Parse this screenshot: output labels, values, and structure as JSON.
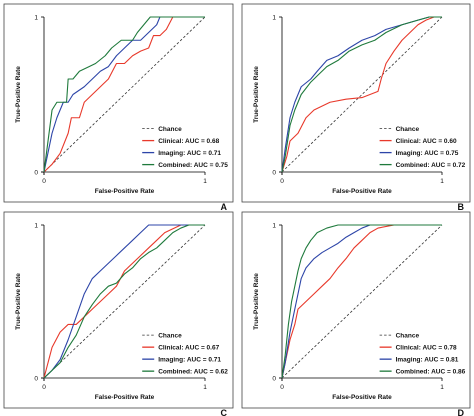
{
  "colors": {
    "clinical": "#e8392b",
    "imaging": "#2d45a8",
    "combined": "#1f7a3c",
    "chance": "#333333",
    "frame": "#444444",
    "axis": "#000000"
  },
  "chart_data": [
    {
      "type": "line",
      "panel": "A",
      "xlabel": "False-Positive Rate",
      "ylabel": "True-Positive Rate",
      "xlim": [
        0,
        1
      ],
      "ylim": [
        0,
        1
      ],
      "xticks": [
        "0",
        "1"
      ],
      "yticks": [
        "0",
        "1"
      ],
      "grid": false,
      "legend_position": "bottom-right",
      "series": [
        {
          "name": "Chance",
          "style": "dashed",
          "color_key": "chance",
          "points": [
            [
              0,
              0
            ],
            [
              1,
              1
            ]
          ]
        },
        {
          "name": "Clinical: AUC = 0.68",
          "color_key": "clinical",
          "points": [
            [
              0,
              0
            ],
            [
              0.05,
              0.05
            ],
            [
              0.1,
              0.12
            ],
            [
              0.15,
              0.25
            ],
            [
              0.17,
              0.35
            ],
            [
              0.22,
              0.35
            ],
            [
              0.25,
              0.45
            ],
            [
              0.3,
              0.5
            ],
            [
              0.35,
              0.55
            ],
            [
              0.4,
              0.6
            ],
            [
              0.45,
              0.7
            ],
            [
              0.5,
              0.7
            ],
            [
              0.55,
              0.75
            ],
            [
              0.6,
              0.78
            ],
            [
              0.65,
              0.8
            ],
            [
              0.68,
              0.88
            ],
            [
              0.72,
              0.88
            ],
            [
              0.76,
              0.92
            ],
            [
              0.8,
              1.0
            ],
            [
              1.0,
              1.0
            ]
          ]
        },
        {
          "name": "Imaging: AUC = 0.71",
          "color_key": "imaging",
          "points": [
            [
              0,
              0
            ],
            [
              0.05,
              0.25
            ],
            [
              0.08,
              0.35
            ],
            [
              0.12,
              0.45
            ],
            [
              0.15,
              0.45
            ],
            [
              0.18,
              0.5
            ],
            [
              0.25,
              0.55
            ],
            [
              0.3,
              0.6
            ],
            [
              0.35,
              0.65
            ],
            [
              0.4,
              0.68
            ],
            [
              0.45,
              0.75
            ],
            [
              0.5,
              0.8
            ],
            [
              0.55,
              0.85
            ],
            [
              0.6,
              0.85
            ],
            [
              0.65,
              0.9
            ],
            [
              0.7,
              0.95
            ],
            [
              0.72,
              1.0
            ],
            [
              1.0,
              1.0
            ]
          ]
        },
        {
          "name": "Combined: AUC = 0.75",
          "color_key": "combined",
          "points": [
            [
              0,
              0
            ],
            [
              0.05,
              0.4
            ],
            [
              0.08,
              0.45
            ],
            [
              0.14,
              0.45
            ],
            [
              0.15,
              0.6
            ],
            [
              0.18,
              0.6
            ],
            [
              0.22,
              0.65
            ],
            [
              0.28,
              0.68
            ],
            [
              0.32,
              0.7
            ],
            [
              0.38,
              0.75
            ],
            [
              0.42,
              0.8
            ],
            [
              0.48,
              0.85
            ],
            [
              0.55,
              0.85
            ],
            [
              0.58,
              0.9
            ],
            [
              0.62,
              0.95
            ],
            [
              0.66,
              1.0
            ],
            [
              1.0,
              1.0
            ]
          ]
        }
      ]
    },
    {
      "type": "line",
      "panel": "B",
      "xlabel": "False-Positive Rate",
      "ylabel": "True-Positive Rate",
      "xlim": [
        0,
        1
      ],
      "ylim": [
        0,
        1
      ],
      "xticks": [
        "0",
        "1"
      ],
      "yticks": [
        "0",
        "1"
      ],
      "grid": false,
      "legend_position": "bottom-right",
      "series": [
        {
          "name": "Chance",
          "style": "dashed",
          "color_key": "chance",
          "points": [
            [
              0,
              0
            ],
            [
              1,
              1
            ]
          ]
        },
        {
          "name": "Clinical: AUC = 0.60",
          "color_key": "clinical",
          "points": [
            [
              0,
              0
            ],
            [
              0.03,
              0.1
            ],
            [
              0.05,
              0.2
            ],
            [
              0.1,
              0.25
            ],
            [
              0.15,
              0.35
            ],
            [
              0.2,
              0.4
            ],
            [
              0.3,
              0.45
            ],
            [
              0.4,
              0.47
            ],
            [
              0.5,
              0.48
            ],
            [
              0.55,
              0.5
            ],
            [
              0.6,
              0.52
            ],
            [
              0.62,
              0.6
            ],
            [
              0.65,
              0.7
            ],
            [
              0.7,
              0.78
            ],
            [
              0.75,
              0.85
            ],
            [
              0.8,
              0.9
            ],
            [
              0.85,
              0.95
            ],
            [
              0.9,
              0.98
            ],
            [
              0.95,
              1.0
            ],
            [
              1.0,
              1.0
            ]
          ]
        },
        {
          "name": "Imaging: AUC = 0.75",
          "color_key": "imaging",
          "points": [
            [
              0,
              0
            ],
            [
              0.02,
              0.15
            ],
            [
              0.05,
              0.35
            ],
            [
              0.08,
              0.45
            ],
            [
              0.12,
              0.55
            ],
            [
              0.18,
              0.6
            ],
            [
              0.22,
              0.65
            ],
            [
              0.28,
              0.72
            ],
            [
              0.35,
              0.75
            ],
            [
              0.42,
              0.8
            ],
            [
              0.5,
              0.85
            ],
            [
              0.58,
              0.88
            ],
            [
              0.65,
              0.92
            ],
            [
              0.75,
              0.95
            ],
            [
              0.85,
              0.98
            ],
            [
              0.92,
              1.0
            ],
            [
              1.0,
              1.0
            ]
          ]
        },
        {
          "name": "Combined: AUC = 0.72",
          "color_key": "combined",
          "points": [
            [
              0,
              0
            ],
            [
              0.02,
              0.1
            ],
            [
              0.05,
              0.3
            ],
            [
              0.08,
              0.4
            ],
            [
              0.12,
              0.5
            ],
            [
              0.18,
              0.58
            ],
            [
              0.22,
              0.62
            ],
            [
              0.28,
              0.68
            ],
            [
              0.35,
              0.72
            ],
            [
              0.42,
              0.78
            ],
            [
              0.5,
              0.82
            ],
            [
              0.58,
              0.85
            ],
            [
              0.65,
              0.9
            ],
            [
              0.75,
              0.95
            ],
            [
              0.85,
              0.98
            ],
            [
              0.92,
              1.0
            ],
            [
              1.0,
              1.0
            ]
          ]
        }
      ]
    },
    {
      "type": "line",
      "panel": "C",
      "xlabel": "False-Positive Rate",
      "ylabel": "True-Positive Rate",
      "xlim": [
        0,
        1
      ],
      "ylim": [
        0,
        1
      ],
      "xticks": [
        "0",
        "1"
      ],
      "yticks": [
        "0",
        "1"
      ],
      "grid": false,
      "legend_position": "bottom-right",
      "series": [
        {
          "name": "Chance",
          "style": "dashed",
          "color_key": "chance",
          "points": [
            [
              0,
              0
            ],
            [
              1,
              1
            ]
          ]
        },
        {
          "name": "Clinical: AUC = 0.67",
          "color_key": "clinical",
          "points": [
            [
              0,
              0
            ],
            [
              0.05,
              0.2
            ],
            [
              0.1,
              0.3
            ],
            [
              0.15,
              0.35
            ],
            [
              0.2,
              0.35
            ],
            [
              0.25,
              0.4
            ],
            [
              0.3,
              0.45
            ],
            [
              0.35,
              0.5
            ],
            [
              0.4,
              0.55
            ],
            [
              0.45,
              0.6
            ],
            [
              0.5,
              0.7
            ],
            [
              0.55,
              0.75
            ],
            [
              0.6,
              0.8
            ],
            [
              0.65,
              0.85
            ],
            [
              0.7,
              0.9
            ],
            [
              0.75,
              0.95
            ],
            [
              0.85,
              1.0
            ],
            [
              1.0,
              1.0
            ]
          ]
        },
        {
          "name": "Imaging: AUC = 0.71",
          "color_key": "imaging",
          "points": [
            [
              0,
              0
            ],
            [
              0.05,
              0.05
            ],
            [
              0.1,
              0.12
            ],
            [
              0.15,
              0.25
            ],
            [
              0.2,
              0.4
            ],
            [
              0.25,
              0.55
            ],
            [
              0.3,
              0.65
            ],
            [
              0.35,
              0.7
            ],
            [
              0.4,
              0.75
            ],
            [
              0.45,
              0.8
            ],
            [
              0.5,
              0.85
            ],
            [
              0.55,
              0.9
            ],
            [
              0.6,
              0.95
            ],
            [
              0.65,
              1.0
            ],
            [
              1.0,
              1.0
            ]
          ]
        },
        {
          "name": "Combined: AUC = 0.62",
          "color_key": "combined",
          "points": [
            [
              0,
              0
            ],
            [
              0.05,
              0.05
            ],
            [
              0.1,
              0.1
            ],
            [
              0.15,
              0.2
            ],
            [
              0.2,
              0.28
            ],
            [
              0.25,
              0.4
            ],
            [
              0.3,
              0.48
            ],
            [
              0.35,
              0.55
            ],
            [
              0.4,
              0.6
            ],
            [
              0.45,
              0.62
            ],
            [
              0.5,
              0.68
            ],
            [
              0.55,
              0.72
            ],
            [
              0.6,
              0.78
            ],
            [
              0.65,
              0.82
            ],
            [
              0.7,
              0.85
            ],
            [
              0.75,
              0.9
            ],
            [
              0.8,
              0.95
            ],
            [
              0.85,
              0.98
            ],
            [
              0.9,
              1.0
            ],
            [
              1.0,
              1.0
            ]
          ]
        }
      ]
    },
    {
      "type": "line",
      "panel": "D",
      "xlabel": "False-Positive Rate",
      "ylabel": "True-Positive Rate",
      "xlim": [
        0,
        1
      ],
      "ylim": [
        0,
        1
      ],
      "xticks": [
        "0",
        "1"
      ],
      "yticks": [
        "0",
        "1"
      ],
      "grid": false,
      "legend_position": "bottom-right",
      "series": [
        {
          "name": "Chance",
          "style": "dashed",
          "color_key": "chance",
          "points": [
            [
              0,
              0
            ],
            [
              1,
              1
            ]
          ]
        },
        {
          "name": "Clinical: AUC = 0.78",
          "color_key": "clinical",
          "points": [
            [
              0,
              0
            ],
            [
              0.02,
              0.1
            ],
            [
              0.05,
              0.25
            ],
            [
              0.08,
              0.35
            ],
            [
              0.1,
              0.45
            ],
            [
              0.15,
              0.5
            ],
            [
              0.2,
              0.55
            ],
            [
              0.25,
              0.6
            ],
            [
              0.3,
              0.65
            ],
            [
              0.35,
              0.72
            ],
            [
              0.4,
              0.78
            ],
            [
              0.45,
              0.85
            ],
            [
              0.5,
              0.9
            ],
            [
              0.55,
              0.95
            ],
            [
              0.6,
              0.98
            ],
            [
              0.7,
              1.0
            ],
            [
              1.0,
              1.0
            ]
          ]
        },
        {
          "name": "Imaging: AUC = 0.81",
          "color_key": "imaging",
          "points": [
            [
              0,
              0
            ],
            [
              0.02,
              0.1
            ],
            [
              0.05,
              0.3
            ],
            [
              0.08,
              0.45
            ],
            [
              0.1,
              0.55
            ],
            [
              0.12,
              0.65
            ],
            [
              0.15,
              0.72
            ],
            [
              0.2,
              0.78
            ],
            [
              0.25,
              0.82
            ],
            [
              0.3,
              0.85
            ],
            [
              0.35,
              0.88
            ],
            [
              0.4,
              0.92
            ],
            [
              0.45,
              0.95
            ],
            [
              0.5,
              0.98
            ],
            [
              0.55,
              1.0
            ],
            [
              1.0,
              1.0
            ]
          ]
        },
        {
          "name": "Combined: AUC = 0.86",
          "color_key": "combined",
          "points": [
            [
              0,
              0
            ],
            [
              0.02,
              0.15
            ],
            [
              0.04,
              0.35
            ],
            [
              0.06,
              0.5
            ],
            [
              0.08,
              0.6
            ],
            [
              0.1,
              0.7
            ],
            [
              0.12,
              0.78
            ],
            [
              0.15,
              0.85
            ],
            [
              0.18,
              0.9
            ],
            [
              0.22,
              0.95
            ],
            [
              0.28,
              0.98
            ],
            [
              0.35,
              1.0
            ],
            [
              1.0,
              1.0
            ]
          ]
        }
      ]
    }
  ]
}
